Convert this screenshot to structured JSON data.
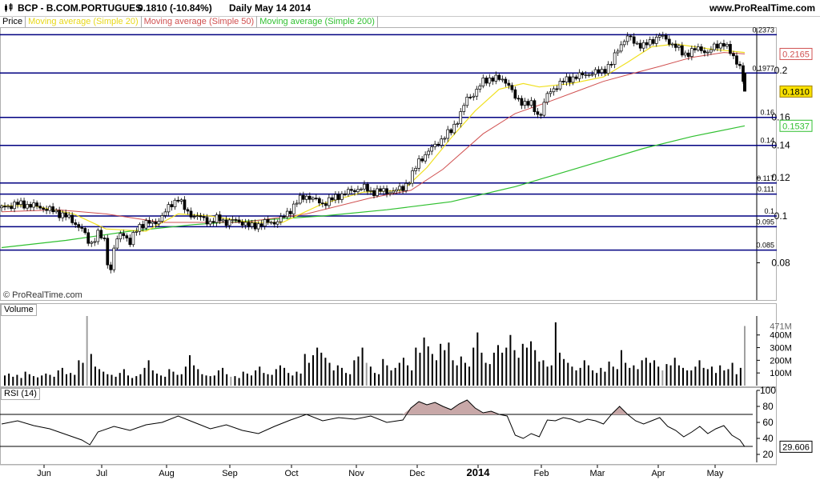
{
  "header": {
    "instrument": "BCP - B.COM.PORTUGUES",
    "quote": "0.1810 (-10.84%)",
    "period": "Daily",
    "date": "May 14 2014",
    "site": "www.ProRealTime.com"
  },
  "legend": {
    "price": "Price",
    "ma20": "Moving average (Simple 20)",
    "ma50": "Moving average (Simple 50)",
    "ma200": "Moving average (Simple 200)"
  },
  "watermark": "© ProRealTime.com",
  "colors": {
    "ma20": "#f0e020",
    "ma50": "#d05050",
    "ma200": "#30c030",
    "hline": "#000080",
    "candle": "#000000",
    "rsi": "#000000",
    "rsi_fill": "#c8a8a8",
    "vol_up": "#000000",
    "vol_down": "#a0a0a0"
  },
  "chart_data": [
    {
      "type": "candlestick",
      "name": "Price",
      "x_tick_labels": [
        "Jun",
        "Jul",
        "Aug",
        "Sep",
        "Oct",
        "Nov",
        "Dec",
        "2014",
        "Feb",
        "Mar",
        "Apr",
        "May"
      ],
      "y_scale": "log",
      "y_ticks": [
        0.08,
        0.1,
        0.12,
        0.14,
        0.16,
        0.2
      ],
      "y_tick_labels": [
        "0.08",
        "0.1",
        "0.12",
        "0.14",
        "0.16",
        "0.2"
      ],
      "ylim": [
        0.067,
        0.245
      ],
      "horizontal_levels": [
        0.2373,
        0.1977,
        0.16,
        0.14,
        0.117,
        0.111,
        0.1,
        0.095,
        0.085
      ],
      "level_labels": [
        "0.2373",
        "0.1977",
        "0.16",
        "0.14",
        "0.117",
        "0.111",
        "0.1",
        "0.095",
        "0.085"
      ],
      "last_price_label": "0.1810",
      "last_price": 0.181,
      "ma50_label": "0.2165",
      "ma50_last": 0.2165,
      "ma200_label": "0.1537",
      "ma200_last": 0.1537,
      "close_path": [
        [
          0,
          0.104
        ],
        [
          10,
          0.106
        ],
        [
          20,
          0.105
        ],
        [
          30,
          0.103
        ],
        [
          40,
          0.1
        ],
        [
          50,
          0.094
        ],
        [
          55,
          0.087
        ],
        [
          60,
          0.092
        ],
        [
          65,
          0.088
        ],
        [
          67,
          0.073
        ],
        [
          70,
          0.086
        ],
        [
          75,
          0.093
        ],
        [
          80,
          0.088
        ],
        [
          85,
          0.095
        ],
        [
          90,
          0.097
        ],
        [
          95,
          0.096
        ],
        [
          100,
          0.1
        ],
        [
          105,
          0.105
        ],
        [
          110,
          0.109
        ],
        [
          115,
          0.102
        ],
        [
          120,
          0.1
        ],
        [
          125,
          0.099
        ],
        [
          130,
          0.097
        ],
        [
          135,
          0.099
        ],
        [
          140,
          0.097
        ],
        [
          145,
          0.098
        ],
        [
          150,
          0.097
        ],
        [
          155,
          0.095
        ],
        [
          160,
          0.096
        ],
        [
          165,
          0.097
        ],
        [
          170,
          0.097
        ],
        [
          175,
          0.099
        ],
        [
          180,
          0.103
        ],
        [
          185,
          0.108
        ],
        [
          190,
          0.11
        ],
        [
          195,
          0.108
        ],
        [
          200,
          0.106
        ],
        [
          205,
          0.108
        ],
        [
          210,
          0.11
        ],
        [
          215,
          0.112
        ],
        [
          220,
          0.113
        ],
        [
          225,
          0.115
        ],
        [
          230,
          0.112
        ],
        [
          235,
          0.113
        ],
        [
          240,
          0.112
        ],
        [
          245,
          0.113
        ],
        [
          250,
          0.114
        ],
        [
          255,
          0.12
        ],
        [
          260,
          0.13
        ],
        [
          265,
          0.135
        ],
        [
          270,
          0.14
        ],
        [
          275,
          0.145
        ],
        [
          280,
          0.15
        ],
        [
          285,
          0.16
        ],
        [
          290,
          0.175
        ],
        [
          295,
          0.18
        ],
        [
          300,
          0.19
        ],
        [
          305,
          0.193
        ],
        [
          310,
          0.192
        ],
        [
          315,
          0.19
        ],
        [
          320,
          0.175
        ],
        [
          325,
          0.172
        ],
        [
          330,
          0.17
        ],
        [
          335,
          0.16
        ],
        [
          340,
          0.178
        ],
        [
          345,
          0.185
        ],
        [
          350,
          0.19
        ],
        [
          355,
          0.193
        ],
        [
          360,
          0.195
        ],
        [
          365,
          0.197
        ],
        [
          370,
          0.198
        ],
        [
          375,
          0.2
        ],
        [
          380,
          0.207
        ],
        [
          385,
          0.225
        ],
        [
          390,
          0.235
        ],
        [
          395,
          0.228
        ],
        [
          400,
          0.225
        ],
        [
          405,
          0.23
        ],
        [
          410,
          0.237
        ],
        [
          415,
          0.23
        ],
        [
          420,
          0.225
        ],
        [
          425,
          0.215
        ],
        [
          430,
          0.22
        ],
        [
          435,
          0.222
        ],
        [
          440,
          0.218
        ],
        [
          445,
          0.225
        ],
        [
          450,
          0.228
        ],
        [
          455,
          0.215
        ],
        [
          460,
          0.205
        ],
        [
          463,
          0.181
        ]
      ],
      "ma20": [
        [
          0,
          0.105
        ],
        [
          20,
          0.105
        ],
        [
          45,
          0.101
        ],
        [
          65,
          0.094
        ],
        [
          90,
          0.093
        ],
        [
          110,
          0.101
        ],
        [
          130,
          0.1
        ],
        [
          155,
          0.097
        ],
        [
          175,
          0.097
        ],
        [
          200,
          0.106
        ],
        [
          225,
          0.112
        ],
        [
          250,
          0.113
        ],
        [
          265,
          0.126
        ],
        [
          280,
          0.145
        ],
        [
          295,
          0.165
        ],
        [
          310,
          0.183
        ],
        [
          325,
          0.188
        ],
        [
          335,
          0.185
        ],
        [
          355,
          0.188
        ],
        [
          375,
          0.194
        ],
        [
          390,
          0.208
        ],
        [
          405,
          0.224
        ],
        [
          420,
          0.227
        ],
        [
          440,
          0.222
        ],
        [
          463,
          0.218
        ]
      ],
      "ma50": [
        [
          0,
          0.102
        ],
        [
          35,
          0.103
        ],
        [
          65,
          0.101
        ],
        [
          100,
          0.097
        ],
        [
          150,
          0.097
        ],
        [
          190,
          0.101
        ],
        [
          230,
          0.109
        ],
        [
          255,
          0.113
        ],
        [
          275,
          0.125
        ],
        [
          300,
          0.148
        ],
        [
          320,
          0.163
        ],
        [
          340,
          0.172
        ],
        [
          360,
          0.182
        ],
        [
          375,
          0.19
        ],
        [
          390,
          0.196
        ],
        [
          410,
          0.204
        ],
        [
          430,
          0.213
        ],
        [
          450,
          0.218
        ],
        [
          463,
          0.2165
        ]
      ],
      "ma200": [
        [
          0,
          0.086
        ],
        [
          40,
          0.089
        ],
        [
          80,
          0.093
        ],
        [
          120,
          0.096
        ],
        [
          160,
          0.098
        ],
        [
          200,
          0.1
        ],
        [
          240,
          0.103
        ],
        [
          280,
          0.107
        ],
        [
          320,
          0.115
        ],
        [
          360,
          0.126
        ],
        [
          400,
          0.138
        ],
        [
          430,
          0.146
        ],
        [
          463,
          0.1537
        ]
      ]
    },
    {
      "type": "bar",
      "name": "Volume",
      "y_tick_labels": [
        "100M",
        "200M",
        "300M",
        "400M",
        "471M"
      ],
      "y_ticks": [
        100,
        200,
        300,
        400
      ],
      "ylim": [
        0,
        550
      ],
      "unit": "M",
      "last_label": "471M",
      "values": [
        80,
        95,
        70,
        85,
        60,
        110,
        90,
        75,
        65,
        80,
        95,
        85,
        70,
        120,
        140,
        90,
        100,
        85,
        200,
        180,
        550,
        250,
        150,
        130,
        110,
        90,
        85,
        70,
        100,
        130,
        80,
        60,
        75,
        90,
        140,
        200,
        120,
        95,
        80,
        70,
        130,
        110,
        85,
        90,
        150,
        240,
        160,
        130,
        90,
        80,
        75,
        80,
        120,
        140,
        90,
        70,
        75,
        60,
        110,
        95,
        80,
        120,
        150,
        100,
        90,
        85,
        130,
        160,
        140,
        100,
        80,
        110,
        95,
        250,
        180,
        240,
        300,
        260,
        220,
        180,
        120,
        160,
        140,
        100,
        90,
        200,
        230,
        300,
        180,
        150,
        100,
        90,
        210,
        160,
        120,
        140,
        180,
        220,
        160,
        120,
        300,
        260,
        380,
        310,
        250,
        200,
        330,
        280,
        340,
        200,
        160,
        230,
        180,
        150,
        300,
        420,
        260,
        180,
        170,
        260,
        320,
        260,
        300,
        400,
        280,
        220,
        330,
        300,
        350,
        280,
        190,
        200,
        150,
        160,
        500,
        260,
        210,
        180,
        150,
        120,
        140,
        200,
        160,
        120,
        100,
        140,
        110,
        190,
        150,
        130,
        280,
        180,
        140,
        160,
        130,
        200,
        220,
        180,
        200,
        150,
        120,
        170,
        160,
        220,
        160,
        140,
        120,
        120,
        150,
        200,
        140,
        130,
        150,
        100,
        160,
        120,
        130,
        180,
        90,
        140,
        471
      ],
      "down_indices": [
        20,
        55,
        88,
        160,
        180,
        186
      ]
    },
    {
      "type": "line",
      "name": "RSI (14)",
      "y_ticks": [
        20,
        40,
        60,
        80,
        100
      ],
      "y_tick_labels": [
        "20",
        "40",
        "60",
        "80",
        "100"
      ],
      "ylim": [
        10,
        100
      ],
      "overbought": 70,
      "oversold": 30,
      "last_label": "29.606",
      "last_value": 29.606,
      "points": [
        [
          0,
          58
        ],
        [
          10,
          62
        ],
        [
          20,
          56
        ],
        [
          30,
          52
        ],
        [
          40,
          45
        ],
        [
          50,
          38
        ],
        [
          55,
          32
        ],
        [
          60,
          48
        ],
        [
          70,
          55
        ],
        [
          80,
          50
        ],
        [
          90,
          57
        ],
        [
          100,
          60
        ],
        [
          110,
          68
        ],
        [
          120,
          60
        ],
        [
          130,
          52
        ],
        [
          140,
          57
        ],
        [
          150,
          50
        ],
        [
          160,
          46
        ],
        [
          170,
          55
        ],
        [
          180,
          63
        ],
        [
          190,
          70
        ],
        [
          200,
          62
        ],
        [
          210,
          66
        ],
        [
          220,
          64
        ],
        [
          230,
          68
        ],
        [
          240,
          60
        ],
        [
          250,
          63
        ],
        [
          255,
          78
        ],
        [
          260,
          86
        ],
        [
          265,
          82
        ],
        [
          270,
          85
        ],
        [
          275,
          80
        ],
        [
          280,
          76
        ],
        [
          285,
          83
        ],
        [
          290,
          88
        ],
        [
          295,
          78
        ],
        [
          300,
          72
        ],
        [
          305,
          74
        ],
        [
          310,
          70
        ],
        [
          315,
          68
        ],
        [
          320,
          44
        ],
        [
          325,
          40
        ],
        [
          330,
          46
        ],
        [
          335,
          42
        ],
        [
          340,
          63
        ],
        [
          345,
          62
        ],
        [
          350,
          66
        ],
        [
          355,
          64
        ],
        [
          360,
          60
        ],
        [
          365,
          64
        ],
        [
          370,
          62
        ],
        [
          375,
          58
        ],
        [
          380,
          70
        ],
        [
          385,
          80
        ],
        [
          390,
          70
        ],
        [
          395,
          62
        ],
        [
          400,
          58
        ],
        [
          405,
          62
        ],
        [
          410,
          66
        ],
        [
          415,
          55
        ],
        [
          420,
          50
        ],
        [
          425,
          42
        ],
        [
          430,
          48
        ],
        [
          435,
          55
        ],
        [
          440,
          46
        ],
        [
          445,
          52
        ],
        [
          450,
          56
        ],
        [
          455,
          44
        ],
        [
          460,
          38
        ],
        [
          463,
          29.606
        ]
      ]
    }
  ]
}
